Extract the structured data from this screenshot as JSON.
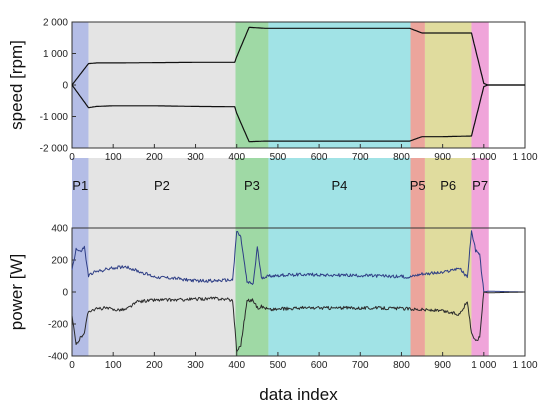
{
  "chart_data": [
    {
      "type": "line",
      "ylabel": "speed [rpm]",
      "xlabel": "",
      "xlim": [
        0,
        1100
      ],
      "ylim": [
        -2000,
        2000
      ],
      "x_ticks": [
        0,
        100,
        200,
        300,
        400,
        500,
        600,
        700,
        800,
        900,
        1000,
        1100
      ],
      "x_tick_labels": [
        "0",
        "100",
        "200",
        "300",
        "400",
        "500",
        "600",
        "700",
        "800",
        "900",
        "1 000",
        "1 100"
      ],
      "y_ticks": [
        -2000,
        -1000,
        0,
        1000,
        2000
      ],
      "y_tick_labels": [
        "-2 000",
        "-1 000",
        "0",
        "1 000",
        "2 000"
      ],
      "series": [
        {
          "color": "#111111",
          "x": [
            0,
            40,
            60,
            100,
            200,
            300,
            395,
            400,
            430,
            470,
            600,
            700,
            820,
            850,
            900,
            970,
            1000,
            1010,
            1100
          ],
          "y": [
            0,
            680,
            700,
            700,
            710,
            720,
            720,
            900,
            1830,
            1800,
            1800,
            1800,
            1800,
            1650,
            1650,
            1650,
            50,
            0,
            0
          ]
        },
        {
          "color": "#111111",
          "x": [
            0,
            40,
            60,
            100,
            200,
            300,
            395,
            400,
            430,
            470,
            600,
            700,
            820,
            850,
            900,
            970,
            1000,
            1010,
            1100
          ],
          "y": [
            0,
            -720,
            -680,
            -660,
            -660,
            -680,
            -690,
            -900,
            -1800,
            -1780,
            -1780,
            -1780,
            -1780,
            -1640,
            -1640,
            -1620,
            -50,
            0,
            0
          ]
        }
      ]
    },
    {
      "type": "line",
      "ylabel": "power [W]",
      "xlabel": "data index",
      "xlim": [
        0,
        1100
      ],
      "ylim": [
        -400,
        400
      ],
      "x_ticks": [
        0,
        100,
        200,
        300,
        400,
        500,
        600,
        700,
        800,
        900,
        1000,
        1100
      ],
      "x_tick_labels": [
        "0",
        "100",
        "200",
        "300",
        "400",
        "500",
        "600",
        "700",
        "800",
        "900",
        "1 000",
        "1 100"
      ],
      "y_ticks": [
        -400,
        -200,
        0,
        200,
        400
      ],
      "y_tick_labels": [
        "-400",
        "-200",
        "0",
        "200",
        "400"
      ],
      "series": [
        {
          "color": "#2f3f86",
          "x": [
            0,
            10,
            20,
            30,
            40,
            50,
            80,
            100,
            130,
            160,
            200,
            250,
            300,
            350,
            390,
            400,
            410,
            425,
            440,
            450,
            460,
            480,
            550,
            650,
            750,
            820,
            850,
            900,
            940,
            960,
            970,
            980,
            990,
            1000,
            1010,
            1100
          ],
          "y": [
            140,
            270,
            250,
            280,
            100,
            120,
            140,
            150,
            160,
            130,
            95,
            85,
            70,
            70,
            75,
            380,
            340,
            60,
            50,
            280,
            90,
            100,
            110,
            105,
            100,
            95,
            115,
            120,
            150,
            90,
            380,
            260,
            230,
            0,
            5,
            0
          ]
        },
        {
          "color": "#2b2b2b",
          "x": [
            0,
            10,
            20,
            30,
            40,
            50,
            80,
            100,
            130,
            160,
            200,
            250,
            300,
            350,
            390,
            400,
            410,
            425,
            440,
            450,
            460,
            480,
            550,
            650,
            750,
            820,
            850,
            900,
            940,
            960,
            970,
            980,
            990,
            1000,
            1010,
            1100
          ],
          "y": [
            -150,
            -330,
            -290,
            -250,
            -120,
            -110,
            -100,
            -110,
            -110,
            -60,
            -50,
            -50,
            -45,
            -40,
            -50,
            -370,
            -330,
            -55,
            -50,
            -100,
            -90,
            -110,
            -100,
            -100,
            -100,
            -105,
            -110,
            -120,
            -140,
            -60,
            -250,
            -310,
            -280,
            0,
            -5,
            0
          ]
        }
      ]
    }
  ],
  "phases": [
    {
      "label": "P1",
      "from": 0,
      "to": 40,
      "color": "#b4bde6"
    },
    {
      "label": "P2",
      "from": 40,
      "to": 397,
      "color": "#e4e4e4"
    },
    {
      "label": "P3",
      "from": 397,
      "to": 477,
      "color": "#9fd9a5"
    },
    {
      "label": "P4",
      "from": 477,
      "to": 822,
      "color": "#a1e3e6"
    },
    {
      "label": "P5",
      "from": 822,
      "to": 857,
      "color": "#eca59c"
    },
    {
      "label": "P6",
      "from": 857,
      "to": 970,
      "color": "#e0dc9e"
    },
    {
      "label": "P7",
      "from": 970,
      "to": 1012,
      "color": "#f0a5da"
    }
  ]
}
